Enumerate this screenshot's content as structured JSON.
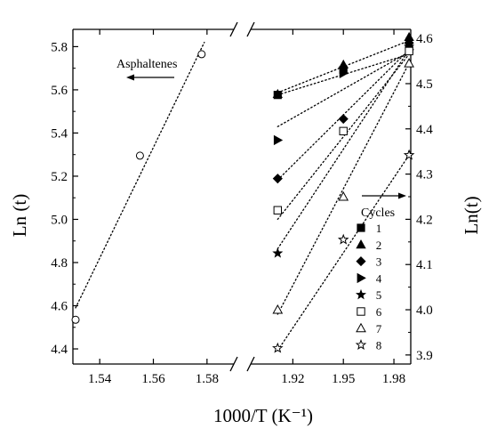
{
  "chart_data": {
    "type": "scatter",
    "xlabel": "1000/T (K⁻¹)",
    "ylabel_left": "Ln (t)",
    "ylabel_right": "Ln(t)",
    "broken_x_axis": true,
    "x_left_segment": {
      "range": [
        1.53,
        1.59
      ],
      "ticks": [
        1.54,
        1.56,
        1.58
      ],
      "tick_labels": [
        "1.54",
        "1.56",
        "1.58"
      ]
    },
    "x_right_segment": {
      "range": [
        1.895,
        1.99
      ],
      "ticks": [
        1.92,
        1.95,
        1.98
      ],
      "tick_labels": [
        "1.92",
        "1.95",
        "1.98"
      ]
    },
    "y_left": {
      "range": [
        4.33,
        5.88
      ],
      "ticks": [
        4.4,
        4.6,
        4.8,
        5.0,
        5.2,
        5.4,
        5.6,
        5.8
      ],
      "tick_labels": [
        "4.4",
        "4.6",
        "4.8",
        "5.0",
        "5.2",
        "5.4",
        "5.6",
        "5.8"
      ]
    },
    "y_right": {
      "range": [
        3.88,
        4.62
      ],
      "ticks": [
        3.9,
        4.0,
        4.1,
        4.2,
        4.3,
        4.4,
        4.5,
        4.6
      ],
      "tick_labels": [
        "3.9",
        "4.0",
        "4.1",
        "4.2",
        "4.3",
        "4.4",
        "4.5",
        "4.6"
      ]
    },
    "annotations": {
      "asphaltenes_label": "Asphaltenes",
      "cycles_label": "Cycles"
    },
    "series": [
      {
        "name": "Asphaltenes",
        "axis": "left",
        "marker": "circle-open",
        "points": [
          [
            1.531,
            4.535
          ],
          [
            1.555,
            5.295
          ],
          [
            1.578,
            5.765
          ]
        ],
        "fit": [
          [
            1.531,
            4.59
          ],
          [
            1.579,
            5.82
          ]
        ]
      },
      {
        "name": "1",
        "axis": "right",
        "marker": "square",
        "points": [
          [
            1.911,
            4.475
          ],
          [
            1.95,
            4.53
          ],
          [
            1.989,
            4.575
          ]
        ],
        "fit": [
          [
            1.911,
            4.475
          ],
          [
            1.989,
            4.565
          ]
        ]
      },
      {
        "name": "2",
        "axis": "right",
        "marker": "triangle-up",
        "points": [
          [
            1.911,
            4.477
          ],
          [
            1.95,
            4.542
          ],
          [
            1.989,
            4.603
          ]
        ],
        "fit": [
          [
            1.911,
            4.48
          ],
          [
            1.989,
            4.595
          ]
        ]
      },
      {
        "name": "3",
        "axis": "right",
        "marker": "diamond",
        "points": [
          [
            1.911,
            4.29
          ],
          [
            1.95,
            4.422
          ],
          [
            1.989,
            4.59
          ]
        ],
        "fit": [
          [
            1.911,
            4.287
          ],
          [
            1.989,
            4.575
          ]
        ]
      },
      {
        "name": "4",
        "axis": "right",
        "marker": "triangle-right",
        "points": [
          [
            1.911,
            4.375
          ],
          [
            1.95,
            4.523
          ],
          [
            1.989,
            4.575
          ]
        ],
        "fit": [
          [
            1.911,
            4.405
          ],
          [
            1.989,
            4.57
          ]
        ]
      },
      {
        "name": "5",
        "axis": "right",
        "marker": "star",
        "points": [
          [
            1.911,
            4.125
          ],
          [
            1.95,
            4.532
          ],
          [
            1.989,
            4.582
          ]
        ],
        "fit": [
          [
            1.911,
            4.135
          ],
          [
            1.989,
            4.575
          ]
        ]
      },
      {
        "name": "6",
        "axis": "right",
        "marker": "square-open",
        "points": [
          [
            1.911,
            4.22
          ],
          [
            1.95,
            4.395
          ],
          [
            1.989,
            4.572
          ]
        ],
        "fit": [
          [
            1.911,
            4.2
          ],
          [
            1.989,
            4.565
          ]
        ]
      },
      {
        "name": "7",
        "axis": "right",
        "marker": "triangle-open",
        "points": [
          [
            1.911,
            4.0
          ],
          [
            1.95,
            4.25
          ],
          [
            1.989,
            4.545
          ]
        ],
        "fit": [
          [
            1.911,
            3.99
          ],
          [
            1.989,
            4.545
          ]
        ]
      },
      {
        "name": "8",
        "axis": "right",
        "marker": "star-open",
        "points": [
          [
            1.911,
            3.915
          ],
          [
            1.95,
            4.155
          ],
          [
            1.989,
            4.342
          ]
        ],
        "fit": [
          [
            1.911,
            3.91
          ],
          [
            1.989,
            4.342
          ]
        ]
      }
    ]
  }
}
